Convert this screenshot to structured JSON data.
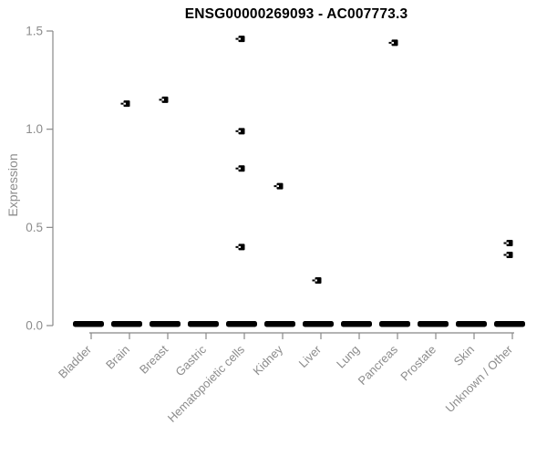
{
  "title": "ENSG00000269093 - AC007773.3",
  "colors": {
    "title": "#000000",
    "axis": "#888888",
    "axis_text": "#8c8c8c",
    "marker": "#000000",
    "background": "#ffffff"
  },
  "chart_data": {
    "type": "scatter",
    "title": "ENSG00000269093 - AC007773.3",
    "xlabel": "",
    "ylabel": "Expression",
    "ylim": [
      0.0,
      1.5
    ],
    "yticks": [
      "0.0",
      "0.5",
      "1.0",
      "1.5"
    ],
    "grid": false,
    "legend_position": "none",
    "categories": [
      "Bladder",
      "Brain",
      "Breast",
      "Gastric",
      "Hematopoietic cells",
      "Kidney",
      "Liver",
      "Lung",
      "Pancreas",
      "Prostate",
      "Skin",
      "Unknown / Other"
    ],
    "zero_dash_value": 0.0,
    "zero_dash_categories": [
      "Bladder",
      "Brain",
      "Breast",
      "Gastric",
      "Hematopoietic cells",
      "Kidney",
      "Liver",
      "Lung",
      "Pancreas",
      "Prostate",
      "Skin",
      "Unknown / Other"
    ],
    "points": [
      {
        "category": "Brain",
        "value": 1.13
      },
      {
        "category": "Breast",
        "value": 1.15
      },
      {
        "category": "Hematopoietic cells",
        "value": 1.46
      },
      {
        "category": "Hematopoietic cells",
        "value": 0.99
      },
      {
        "category": "Hematopoietic cells",
        "value": 0.8
      },
      {
        "category": "Hematopoietic cells",
        "value": 0.4
      },
      {
        "category": "Kidney",
        "value": 0.71
      },
      {
        "category": "Liver",
        "value": 0.23
      },
      {
        "category": "Pancreas",
        "value": 1.44
      },
      {
        "category": "Unknown / Other",
        "value": 0.42
      },
      {
        "category": "Unknown / Other",
        "value": 0.36
      }
    ]
  }
}
